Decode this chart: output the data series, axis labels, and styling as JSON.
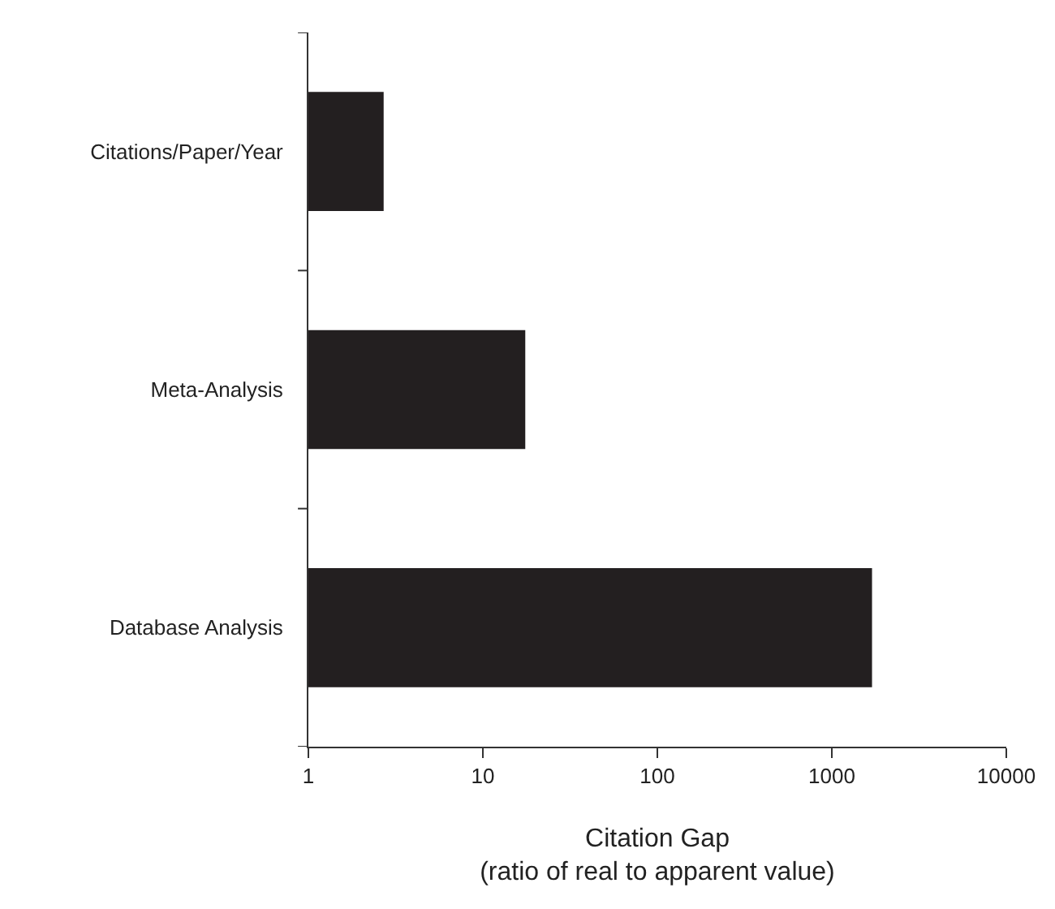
{
  "chart_data": {
    "type": "bar",
    "orientation": "horizontal",
    "log": "x",
    "categories": [
      "Citations/Paper/Year",
      "Meta-Analysis",
      "Database Analysis"
    ],
    "values": [
      2.7,
      17.5,
      1700
    ],
    "color": "#231f20",
    "xlabel": "Citation Gap\n(ratio of real to apparent value)",
    "xlim": [
      1,
      10000
    ],
    "xticks": [
      1,
      10,
      100,
      1000,
      10000
    ],
    "legend": false
  }
}
